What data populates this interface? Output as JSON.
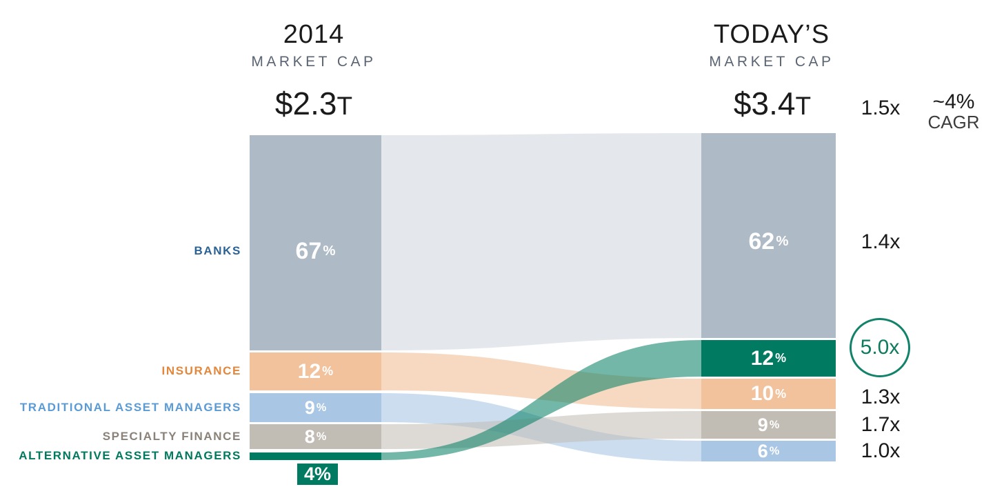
{
  "headers": {
    "left": {
      "title": "2014",
      "subtitle": "MARKET CAP",
      "total": "$2.3",
      "total_unit": "T"
    },
    "right": {
      "title": "TODAY’S",
      "subtitle": "MARKET CAP",
      "total": "$3.4",
      "total_unit": "T"
    },
    "overall_multiple": "1.5x",
    "cagr_value": "~4%",
    "cagr_label": "CAGR"
  },
  "chart_data": {
    "type": "sankey",
    "unit": "%",
    "columns": [
      {
        "id": "2014",
        "title": "2014",
        "subtitle": "MARKET CAP",
        "total": "$2.3T",
        "order": [
          "banks",
          "insurance",
          "traditional",
          "specialty",
          "alternative"
        ]
      },
      {
        "id": "today",
        "title": "TODAY’S",
        "subtitle": "MARKET CAP",
        "total": "$3.4T",
        "order": [
          "banks",
          "alternative",
          "insurance",
          "specialty",
          "traditional"
        ]
      }
    ],
    "overall": {
      "multiple": "1.5x",
      "cagr": "~4% CAGR"
    },
    "categories": [
      {
        "id": "banks",
        "label": "BANKS",
        "left_pct": 67,
        "right_pct": 62,
        "multiple": "1.4x",
        "multiple_circled": false,
        "bar_color": "#AFBAC7",
        "label_color": "#2B6295",
        "flow_opacity": 0.34
      },
      {
        "id": "insurance",
        "label": "INSURANCE",
        "left_pct": 12,
        "right_pct": 10,
        "multiple": "1.3x",
        "multiple_circled": false,
        "bar_color": "#F2C29C",
        "label_color": "#E2873B",
        "flow_opacity": 0.62
      },
      {
        "id": "traditional",
        "label": "TRADITIONAL ASSET MANAGERS",
        "left_pct": 9,
        "right_pct": 6,
        "multiple": "1.0x",
        "multiple_circled": false,
        "bar_color": "#A9C6E4",
        "label_color": "#5B9BD5",
        "flow_opacity": 0.6
      },
      {
        "id": "specialty",
        "label": "SPECIALTY FINANCE",
        "left_pct": 8,
        "right_pct": 9,
        "multiple": "1.7x",
        "multiple_circled": false,
        "bar_color": "#C1BCB4",
        "label_color": "#8A8178",
        "flow_opacity": 0.55
      },
      {
        "id": "alternative",
        "label": "ALTERNATIVE ASSET MANAGERS",
        "left_pct": 4,
        "right_pct": 12,
        "multiple": "5.0x",
        "multiple_circled": true,
        "bar_color": "#007B61",
        "label_color": "#00795E",
        "flow_opacity": 0.55
      }
    ]
  }
}
